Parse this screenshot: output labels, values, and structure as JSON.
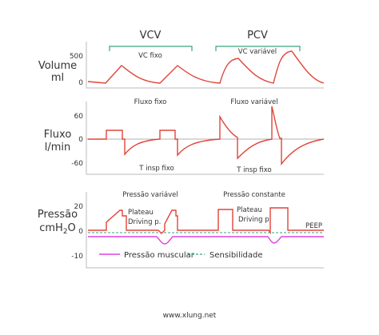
{
  "header": {
    "left": "VCV",
    "right": "PCV"
  },
  "volume": {
    "label": "Volume",
    "unit": "ml",
    "ticks": [
      "500",
      "0"
    ],
    "notes": [
      "VC fixo",
      "VC variável"
    ]
  },
  "flow": {
    "label": "Fluxo",
    "unit": "l/min",
    "ticks": [
      "60",
      "0",
      "-60"
    ],
    "notes": [
      "Fluxo fixo",
      "Fluxo variável",
      "T insp fixo",
      "T insp fixo"
    ]
  },
  "pressure": {
    "label": "Pressão",
    "unit_parts": [
      "cmH",
      "2",
      "O"
    ],
    "ticks": [
      "20",
      "0",
      "-10"
    ],
    "notes": [
      "Pressão variável",
      "Pressão constante",
      "Plateau",
      "Driving p.",
      "Plateau",
      "Driving p.",
      "PEEP"
    ]
  },
  "legend": [
    "Pressão muscular",
    "Sensibilidade"
  ],
  "footer": "www.xlung.net"
}
